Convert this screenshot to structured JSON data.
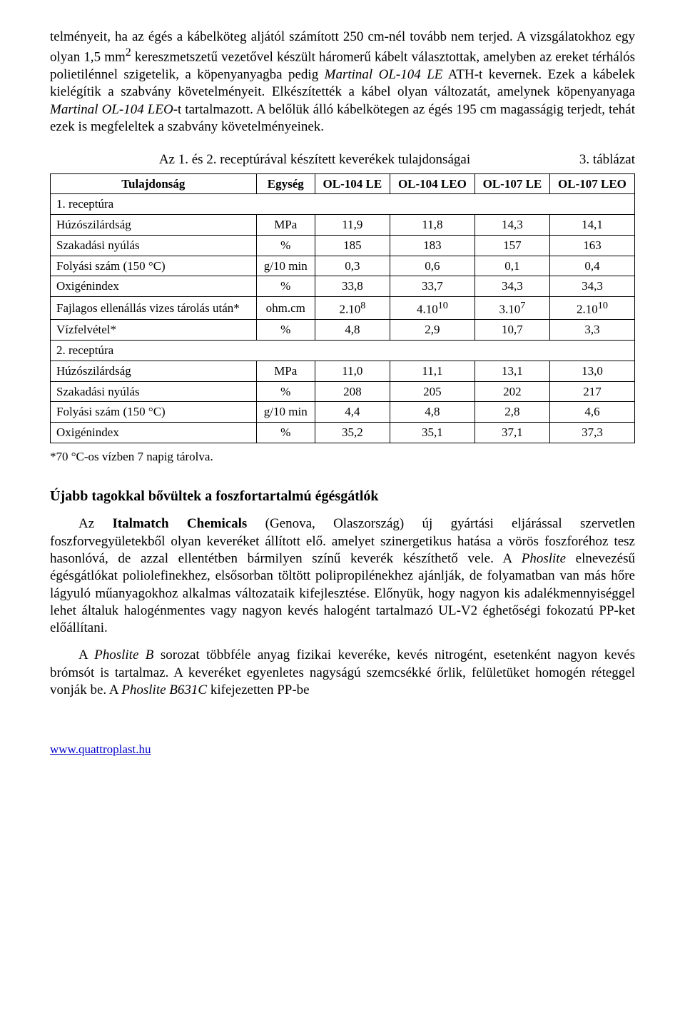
{
  "paragraphs": {
    "p1_a": "telményeit, ha az égés a kábelköteg aljától számított 250 cm-nél tovább nem terjed. A vizsgálatokhoz egy olyan 1,5 mm",
    "p1_sup": "2",
    "p1_b": " kereszmetszetű vezetővel készült háromerű kábelt választottak, amelyben az ereket térhálós polietilénnel szigetelik, a köpenyanyagba pedig ",
    "p1_c": "Martinal OL-104 LE",
    "p1_d": " ATH-t kevernek. Ezek a kábelek kielégítik a szabvány követelményeit. Elkészítették a kábel olyan változatát, amelynek köpenyanyaga ",
    "p1_e": "Martinal OL-104 LEO",
    "p1_f": "-t tartalmazott. A belőlük álló kábelkötegen az égés 195 cm magasságig terjedt, tehát ezek is megfeleltek a szabvány követelményeinek."
  },
  "table_caption": {
    "right": "3. táblázat",
    "center": "Az 1. és 2. receptúrával készített keverékek tulajdonságai"
  },
  "table": {
    "headers": [
      "Tulajdonság",
      "Egység",
      "OL-104 LE",
      "OL-104 LEO",
      "OL-107 LE",
      "OL-107 LEO"
    ],
    "section1": "1. receptúra",
    "rows1": [
      [
        "Húzószilárdság",
        "MPa",
        "11,9",
        "11,8",
        "14,3",
        "14,1"
      ],
      [
        "Szakadási nyúlás",
        "%",
        "185",
        "183",
        "157",
        "163"
      ],
      [
        "Folyási szám (150 °C)",
        "g/10 min",
        "0,3",
        "0,6",
        "0,1",
        "0,4"
      ],
      [
        "Oxigénindex",
        "%",
        "33,8",
        "33,7",
        "34,3",
        "34,3"
      ]
    ],
    "row_resist": {
      "label": "Fajlagos ellenállás vizes tárolás után*",
      "unit": "ohm.cm",
      "vals": [
        {
          "base": "2.10",
          "exp": "8"
        },
        {
          "base": "4.10",
          "exp": "10"
        },
        {
          "base": "3.10",
          "exp": "7"
        },
        {
          "base": "2.10",
          "exp": "10"
        }
      ]
    },
    "row_water": [
      "Vízfelvétel*",
      "%",
      "4,8",
      "2,9",
      "10,7",
      "3,3"
    ],
    "section2": "2. receptúra",
    "rows2": [
      [
        "Húzószilárdság",
        "MPa",
        "11,0",
        "11,1",
        "13,1",
        "13,0"
      ],
      [
        "Szakadási nyúlás",
        "%",
        "208",
        "205",
        "202",
        "217"
      ],
      [
        "Folyási szám (150 °C)",
        "g/10 min",
        "4,4",
        "4,8",
        "2,8",
        "4,6"
      ],
      [
        "Oxigénindex",
        "%",
        "35,2",
        "35,1",
        "37,1",
        "37,3"
      ]
    ]
  },
  "footnote": "*70 °C-os vízben 7 napig tárolva.",
  "heading": "Újabb tagokkal bővültek a foszfortartalmú égésgátlók",
  "body2": {
    "p2_a": "Az ",
    "p2_b": "Italmatch Chemicals",
    "p2_c": " (Genova, Olaszország) új gyártási eljárással szervetlen foszforvegyületekből olyan keveréket állított elő. amelyet szinergetikus hatása a vörös foszforéhoz tesz hasonlóvá, de azzal ellentétben bármilyen színű keverék készíthető vele. A ",
    "p2_d": "Phoslite",
    "p2_e": " elnevezésű égésgátlókat poliolefinekhez, elsősorban töltött polipropilénekhez ajánlják, de folyamatban van más hőre lágyuló műanyagokhoz alkalmas változataik kifejlesztése. Előnyük, hogy nagyon kis adalékmennyiséggel lehet általuk halogénmentes vagy nagyon kevés halogént tartalmazó UL-V2 éghetőségi fokozatú PP-ket előállítani.",
    "p3_a": "A ",
    "p3_b": "Phoslite B",
    "p3_c": " sorozat többféle anyag fizikai keveréke, kevés nitrogént, esetenként nagyon kevés brómsót is tartalmaz. A keveréket egyenletes nagyságú szemcsékké őrlik, felületüket homogén réteggel vonják be. A ",
    "p3_d": "Phoslite B631C",
    "p3_e": " kifejezetten PP-be"
  },
  "footer_link": "www.quattroplast.hu"
}
